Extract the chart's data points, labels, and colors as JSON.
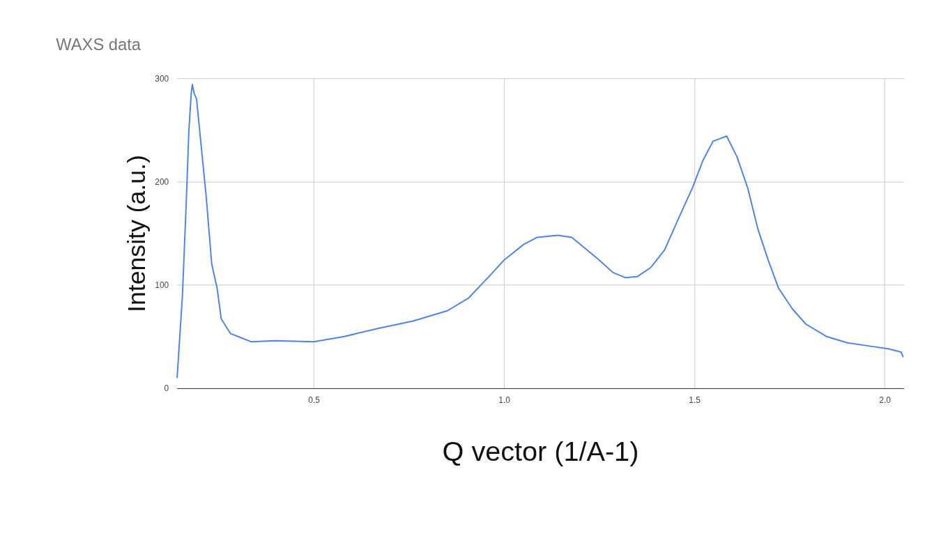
{
  "chart_data": {
    "type": "line",
    "title": "WAXS data",
    "xlabel": "Q vector (1/A-1)",
    "ylabel": "Intensity (a.u.)",
    "x": [
      0.141,
      0.155,
      0.165,
      0.172,
      0.178,
      0.181,
      0.186,
      0.192,
      0.199,
      0.217,
      0.232,
      0.246,
      0.257,
      0.281,
      0.308,
      0.335,
      0.399,
      0.5,
      0.58,
      0.67,
      0.761,
      0.851,
      0.906,
      0.96,
      1.0,
      1.051,
      1.087,
      1.141,
      1.178,
      1.214,
      1.25,
      1.286,
      1.319,
      1.35,
      1.386,
      1.422,
      1.458,
      1.495,
      1.522,
      1.549,
      1.585,
      1.612,
      1.64,
      1.667,
      1.694,
      1.721,
      1.757,
      1.793,
      1.848,
      1.902,
      1.957,
      2.011,
      2.043,
      2.049
    ],
    "series": [
      {
        "color": "#4a86e8",
        "values": [
          10,
          90,
          180,
          250,
          285,
          294,
          285,
          280,
          254,
          187,
          120,
          97,
          67,
          53,
          49,
          45,
          46,
          45,
          50,
          58,
          65,
          75,
          87,
          108,
          124,
          139,
          146,
          148,
          146,
          135,
          124,
          112,
          107,
          108,
          117,
          134,
          164,
          194,
          220,
          239,
          244,
          224,
          194,
          154,
          124,
          97,
          77,
          62,
          50,
          44,
          41,
          38,
          35,
          30
        ]
      }
    ],
    "xlim": [
      0.14,
      2.05
    ],
    "xticks": [
      0.5,
      {
        "value": 1,
        "label": "1.0"
      },
      1.5,
      {
        "value": 2,
        "label": "2.0"
      }
    ],
    "ylim": [
      0,
      300
    ],
    "yticks": [
      0,
      100,
      200,
      300
    ],
    "grid": true,
    "legend": false,
    "marker": "none",
    "line_style": "solid"
  }
}
